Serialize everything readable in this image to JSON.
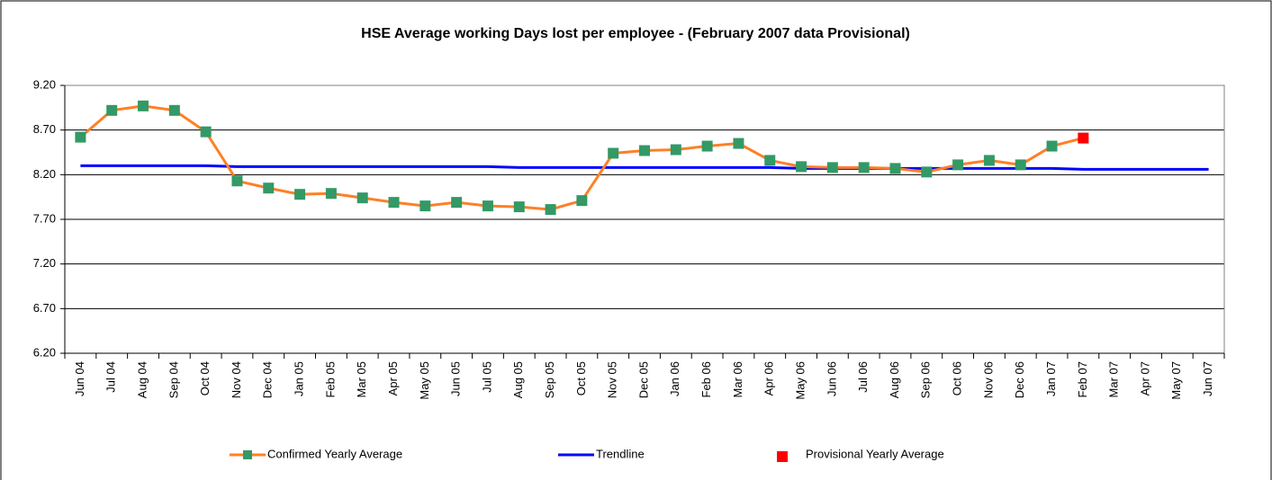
{
  "chart_data": {
    "type": "line",
    "title": "HSE Average working Days lost per employee - (February 2007 data Provisional)",
    "categories": [
      "Jun 04",
      "Jul 04",
      "Aug 04",
      "Sep 04",
      "Oct 04",
      "Nov 04",
      "Dec 04",
      "Jan 05",
      "Feb 05",
      "Mar 05",
      "Apr 05",
      "May 05",
      "Jun 05",
      "Jul 05",
      "Aug 05",
      "Sep 05",
      "Oct 05",
      "Nov 05",
      "Dec 05",
      "Jan 06",
      "Feb 06",
      "Mar 06",
      "Apr 06",
      "May 06",
      "Jun 06",
      "Jul 06",
      "Aug 06",
      "Sep 06",
      "Oct 06",
      "Nov 06",
      "Dec 06",
      "Jan 07",
      "Feb 07",
      "Mar 07",
      "Apr 07",
      "May 07",
      "Jun 07"
    ],
    "series": [
      {
        "name": "Confirmed Yearly Average",
        "color": "#ff7f27",
        "marker_color": "#339966",
        "values": [
          8.62,
          8.92,
          8.97,
          8.92,
          8.68,
          8.13,
          8.05,
          7.98,
          7.99,
          7.94,
          7.89,
          7.85,
          7.89,
          7.85,
          7.84,
          7.81,
          7.91,
          8.44,
          8.47,
          8.48,
          8.52,
          8.55,
          8.36,
          8.29,
          8.28,
          8.28,
          8.27,
          8.23,
          8.31,
          8.36,
          8.31,
          8.52,
          null,
          null,
          null,
          null,
          null
        ]
      },
      {
        "name": "Trendline",
        "color": "#0000ff",
        "values": [
          8.3,
          8.3,
          8.3,
          8.3,
          8.3,
          8.29,
          8.29,
          8.29,
          8.29,
          8.29,
          8.29,
          8.29,
          8.29,
          8.29,
          8.28,
          8.28,
          8.28,
          8.28,
          8.28,
          8.28,
          8.28,
          8.28,
          8.28,
          8.27,
          8.27,
          8.27,
          8.27,
          8.27,
          8.27,
          8.27,
          8.27,
          8.27,
          8.26,
          8.26,
          8.26,
          8.26,
          8.26
        ]
      },
      {
        "name": "Provisional Yearly Average",
        "color": "#ff0000",
        "values": [
          null,
          null,
          null,
          null,
          null,
          null,
          null,
          null,
          null,
          null,
          null,
          null,
          null,
          null,
          null,
          null,
          null,
          null,
          null,
          null,
          null,
          null,
          null,
          null,
          null,
          null,
          null,
          null,
          null,
          null,
          null,
          null,
          8.61,
          null,
          null,
          null,
          null
        ]
      }
    ],
    "ylim": [
      6.2,
      9.2
    ],
    "yticks": [
      {
        "value": 6.2,
        "label": "6.20"
      },
      {
        "value": 6.7,
        "label": "6.70"
      },
      {
        "value": 7.2,
        "label": "7.20"
      },
      {
        "value": 7.7,
        "label": "7.70"
      },
      {
        "value": 8.2,
        "label": "8.20"
      },
      {
        "value": 8.7,
        "label": "8.70"
      },
      {
        "value": 9.2,
        "label": "9.20"
      }
    ],
    "grid": true,
    "legend": "bottom"
  }
}
